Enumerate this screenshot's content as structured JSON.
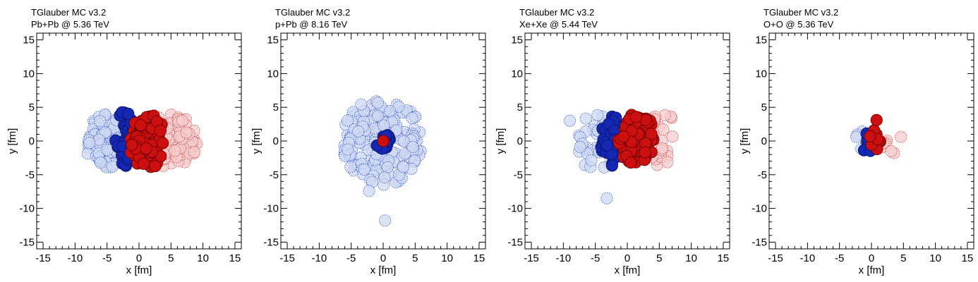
{
  "chart_data": [
    {
      "type": "scatter",
      "title": "TGlauber MC v3.2",
      "subtitle": "Pb+Pb @ 5.36 TeV",
      "xlabel": "x [fm]",
      "ylabel": "y [fm]",
      "xlim": [
        -16,
        16
      ],
      "ylim": [
        -16,
        16
      ],
      "xticks": [
        -15,
        -10,
        -5,
        0,
        5,
        10,
        15
      ],
      "yticks": [
        -15,
        -10,
        -5,
        0,
        5,
        10,
        15
      ],
      "grid": false,
      "nucleon_radius": 0.9,
      "clusters": [
        {
          "group": "spectator-a",
          "cx": -4.5,
          "cy": 0.0,
          "rx": 4.2,
          "ry": 4.0,
          "n": 110,
          "seed": 11
        },
        {
          "group": "spectator-b",
          "cx": 4.8,
          "cy": 0.0,
          "rx": 4.3,
          "ry": 4.0,
          "n": 110,
          "seed": 12
        },
        {
          "group": "participant-a",
          "cx": -2.0,
          "cy": 0.3,
          "rx": 1.8,
          "ry": 4.3,
          "n": 50,
          "seed": 13
        },
        {
          "group": "participant-b",
          "cx": 1.2,
          "cy": 0.0,
          "rx": 2.8,
          "ry": 4.5,
          "n": 75,
          "seed": 14
        }
      ],
      "points": []
    },
    {
      "type": "scatter",
      "title": "TGlauber MC v3.2",
      "subtitle": "p+Pb @ 8.16 TeV",
      "xlabel": "x [fm]",
      "ylabel": "y [fm]",
      "xlim": [
        -16,
        16
      ],
      "ylim": [
        -16,
        16
      ],
      "xticks": [
        -15,
        -10,
        -5,
        0,
        5,
        10,
        15
      ],
      "yticks": [
        -15,
        -10,
        -5,
        0,
        5,
        10,
        15
      ],
      "grid": false,
      "nucleon_radius": 0.9,
      "clusters": [
        {
          "group": "spectator-a",
          "cx": 0.0,
          "cy": 0.0,
          "rx": 6.5,
          "ry": 6.5,
          "n": 170,
          "seed": 21
        },
        {
          "group": "participant-a",
          "cx": 0.0,
          "cy": 0.0,
          "rx": 1.2,
          "ry": 1.2,
          "n": 14,
          "seed": 22
        }
      ],
      "points": [
        {
          "group": "spectator-a",
          "x": 0.3,
          "y": -11.8
        },
        {
          "group": "spectator-a",
          "x": -2.2,
          "y": -7.4
        },
        {
          "group": "participant-b",
          "x": 0.0,
          "y": 0.0
        }
      ]
    },
    {
      "type": "scatter",
      "title": "TGlauber MC v3.2",
      "subtitle": "Xe+Xe @ 5.44 TeV",
      "xlabel": "x [fm]",
      "ylabel": "y [fm]",
      "xlim": [
        -16,
        16
      ],
      "ylim": [
        -16,
        16
      ],
      "xticks": [
        -15,
        -10,
        -5,
        0,
        5,
        10,
        15
      ],
      "yticks": [
        -15,
        -10,
        -5,
        0,
        5,
        10,
        15
      ],
      "grid": false,
      "nucleon_radius": 0.9,
      "clusters": [
        {
          "group": "spectator-a",
          "cx": -4.8,
          "cy": -0.2,
          "rx": 3.2,
          "ry": 4.2,
          "n": 38,
          "seed": 31
        },
        {
          "group": "spectator-b",
          "cx": 5.0,
          "cy": 0.3,
          "rx": 3.0,
          "ry": 4.2,
          "n": 30,
          "seed": 32
        },
        {
          "group": "participant-a",
          "cx": -2.5,
          "cy": 0.0,
          "rx": 1.7,
          "ry": 3.8,
          "n": 42,
          "seed": 33
        },
        {
          "group": "participant-b",
          "cx": 1.5,
          "cy": 0.2,
          "rx": 2.9,
          "ry": 4.0,
          "n": 72,
          "seed": 34
        }
      ],
      "points": [
        {
          "group": "spectator-a",
          "x": -3.2,
          "y": -8.5
        },
        {
          "group": "spectator-a",
          "x": -9.0,
          "y": 3.0
        }
      ]
    },
    {
      "type": "scatter",
      "title": "TGlauber MC v3.2",
      "subtitle": "O+O @ 5.36 TeV",
      "xlabel": "x [fm]",
      "ylabel": "y [fm]",
      "xlim": [
        -16,
        16
      ],
      "ylim": [
        -16,
        16
      ],
      "xticks": [
        -15,
        -10,
        -5,
        0,
        5,
        10,
        15
      ],
      "yticks": [
        -15,
        -10,
        -5,
        0,
        5,
        10,
        15
      ],
      "grid": false,
      "nucleon_radius": 0.9,
      "clusters": [
        {
          "group": "spectator-a",
          "cx": -1.4,
          "cy": -0.3,
          "rx": 1.3,
          "ry": 1.7,
          "n": 6,
          "seed": 41
        },
        {
          "group": "spectator-b",
          "cx": 2.4,
          "cy": -0.5,
          "rx": 1.6,
          "ry": 1.8,
          "n": 6,
          "seed": 42
        },
        {
          "group": "participant-a",
          "cx": -0.5,
          "cy": -0.4,
          "rx": 1.0,
          "ry": 1.6,
          "n": 9,
          "seed": 43
        },
        {
          "group": "participant-b",
          "cx": 0.8,
          "cy": 0.2,
          "rx": 1.1,
          "ry": 1.5,
          "n": 9,
          "seed": 44
        }
      ],
      "points": [
        {
          "group": "participant-b",
          "x": 0.8,
          "y": 3.1
        },
        {
          "group": "spectator-b",
          "x": 4.6,
          "y": 0.6
        }
      ]
    }
  ],
  "colors": {
    "spectator-a": {
      "fill": "#cdd8f3",
      "stroke": "#2b4fb8"
    },
    "spectator-b": {
      "fill": "#f6cccc",
      "stroke": "#c23434"
    },
    "participant-a": {
      "fill": "#1428b4",
      "stroke": "#0a1470"
    },
    "participant-b": {
      "fill": "#cc1010",
      "stroke": "#6e0000"
    },
    "frame": "#000000"
  }
}
